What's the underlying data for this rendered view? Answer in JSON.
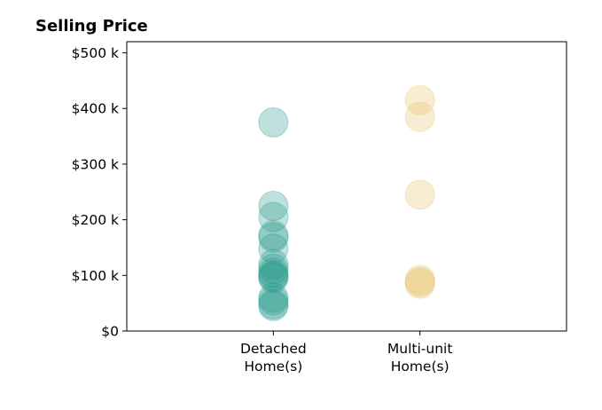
{
  "chart_data": {
    "type": "scatter",
    "title": "Selling Price",
    "xlabel": "",
    "ylabel": "",
    "categories": [
      [
        "Detached",
        "Home(s)"
      ],
      [
        "Multi-unit",
        "Home(s)"
      ]
    ],
    "xlim": [
      -1,
      2
    ],
    "ylim": [
      0,
      520
    ],
    "y_ticks": [
      0,
      100,
      200,
      300,
      400,
      500
    ],
    "y_tick_labels": [
      "$0",
      "$100 k",
      "$200 k",
      "$300 k",
      "$400 k",
      "$500 k"
    ],
    "y_unit": "thousand dollars",
    "grid": false,
    "series": [
      {
        "category_index": 0,
        "color": "#2a9d8f",
        "values": [
          375,
          225,
          205,
          172,
          168,
          148,
          120,
          112,
          105,
          100,
          98,
          95,
          60,
          55,
          48,
          45
        ]
      },
      {
        "category_index": 1,
        "color": "#e9c46a",
        "values": [
          415,
          385,
          245,
          92,
          88,
          85
        ]
      }
    ]
  }
}
